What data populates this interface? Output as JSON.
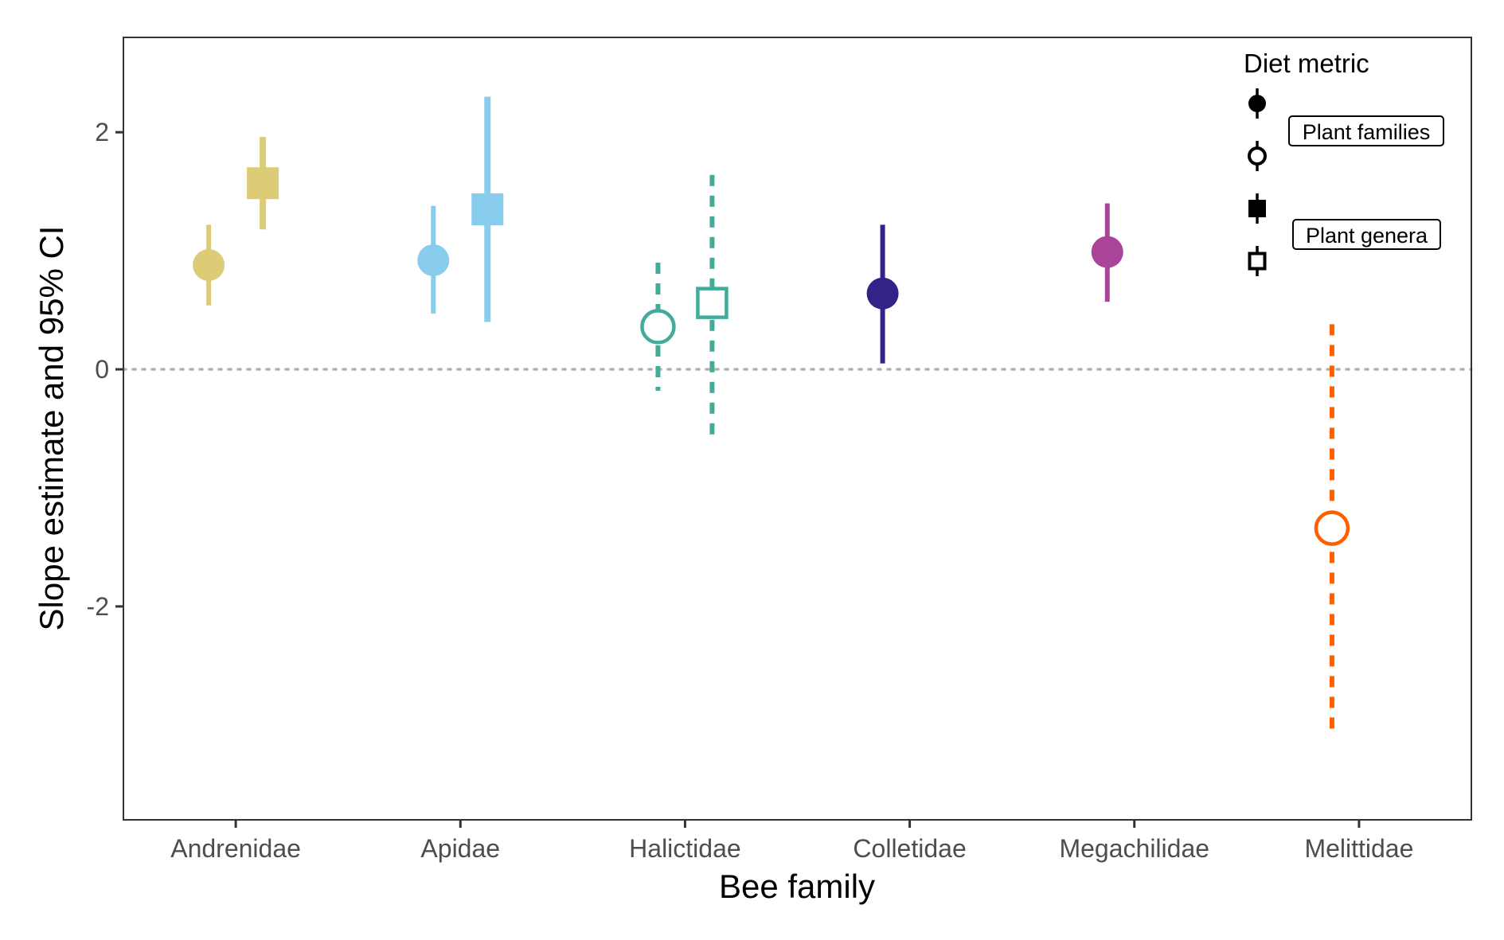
{
  "chart_data": {
    "type": "scatter",
    "subtype": "point-range",
    "title": "",
    "xlabel": "Bee family",
    "ylabel": "Slope estimate and 95% CI",
    "categories": [
      "Andrenidae",
      "Apidae",
      "Halictidae",
      "Colletidae",
      "Megachilidae",
      "Melittidae"
    ],
    "ylim": [
      -3.8,
      2.8
    ],
    "yticks": [
      -2,
      0,
      2
    ],
    "ytick_labels": [
      "-2",
      "0",
      "2"
    ],
    "reference_line": {
      "y": 0,
      "style": "dotted",
      "color": "#b3b3b3"
    },
    "grid": false,
    "legend": {
      "title": "Diet metric",
      "placement": "top-right",
      "labels": [
        "Plant families",
        "Plant genera"
      ]
    },
    "series": [
      {
        "metric": "Plant families",
        "points": [
          {
            "category": "Andrenidae",
            "estimate": 0.88,
            "lower": 0.54,
            "upper": 1.22,
            "color": "#DDCC77",
            "filled": true,
            "significant": true
          },
          {
            "category": "Apidae",
            "estimate": 0.92,
            "lower": 0.47,
            "upper": 1.38,
            "color": "#88CCEE",
            "filled": true,
            "significant": true
          },
          {
            "category": "Halictidae",
            "estimate": 0.36,
            "lower": -0.18,
            "upper": 0.9,
            "color": "#44AA99",
            "filled": false,
            "significant": false
          },
          {
            "category": "Colletidae",
            "estimate": 0.64,
            "lower": 0.05,
            "upper": 1.22,
            "color": "#332288",
            "filled": true,
            "significant": true
          },
          {
            "category": "Megachilidae",
            "estimate": 0.99,
            "lower": 0.57,
            "upper": 1.4,
            "color": "#AA4499",
            "filled": true,
            "significant": true
          },
          {
            "category": "Melittidae",
            "estimate": -1.34,
            "lower": -3.05,
            "upper": 0.38,
            "color": "#FF5F00",
            "filled": false,
            "significant": false
          }
        ]
      },
      {
        "metric": "Plant genera",
        "points": [
          {
            "category": "Andrenidae",
            "estimate": 1.57,
            "lower": 1.18,
            "upper": 1.96,
            "color": "#DDCC77",
            "filled": true,
            "significant": true
          },
          {
            "category": "Apidae",
            "estimate": 1.35,
            "lower": 0.4,
            "upper": 2.3,
            "color": "#88CCEE",
            "filled": true,
            "significant": true
          },
          {
            "category": "Halictidae",
            "estimate": 0.56,
            "lower": -0.62,
            "upper": 1.64,
            "color": "#44AA99",
            "filled": false,
            "significant": false
          }
        ]
      }
    ]
  }
}
